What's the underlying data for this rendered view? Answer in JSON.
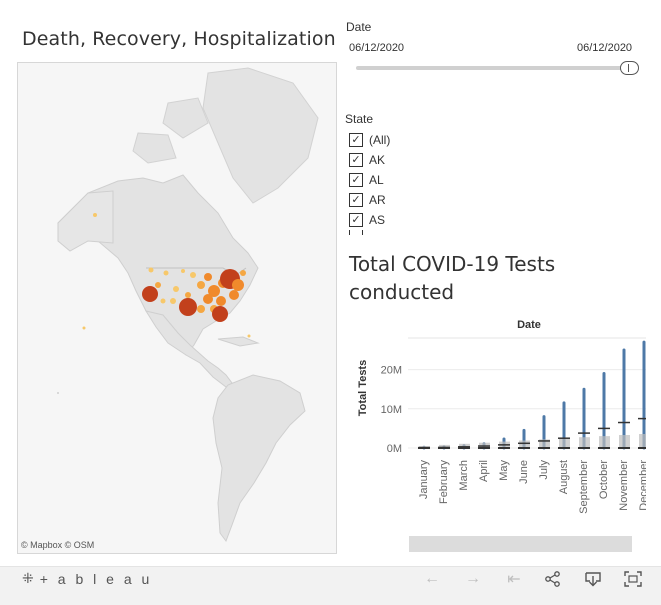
{
  "map": {
    "title": "Death, Recovery, Hospitalization",
    "attribution": "© Mapbox  © OSM",
    "colors": {
      "land": "#e3e3e3",
      "water": "#f6f6f6",
      "borders": "#c8c8c8",
      "dot_low": "#f7c86a",
      "dot_mid": "#f08a2c",
      "dot_high": "#c2401c"
    }
  },
  "filters": {
    "date_label": "Date",
    "date_start": "06/12/2020",
    "date_end": "06/12/2020",
    "state_label": "State",
    "states": [
      "(All)",
      "AK",
      "AL",
      "AR",
      "AS"
    ]
  },
  "tests_chart": {
    "title": "Total COVID-19 Tests conducted",
    "chart_data": {
      "type": "scatter",
      "title": "Total COVID-19 Tests conducted",
      "column_header": "Date",
      "ylabel": "Total Tests",
      "categories": [
        "January",
        "February",
        "March",
        "April",
        "May",
        "June",
        "July",
        "August",
        "September",
        "October",
        "November",
        "December"
      ],
      "y_ticks": [
        "0M",
        "10M",
        "20M"
      ],
      "ylim": [
        0,
        25000000
      ],
      "max_values": [
        200000,
        300000,
        600000,
        1100000,
        2300000,
        4500000,
        8000000,
        11500000,
        15000000,
        19000000,
        25000000,
        27000000
      ],
      "upper_marks": [
        100000,
        150000,
        300000,
        500000,
        800000,
        1200000,
        1800000,
        2500000,
        3800000,
        5000000,
        6500000,
        7500000
      ],
      "series_color": "#4e79a7",
      "mark_color": "#333333"
    }
  },
  "toolbar": {
    "logo_text": "+ a b l e a u",
    "undo_icon": "undo-arrow-icon",
    "redo_icon": "redo-arrow-icon",
    "revert_icon": "revert-icon",
    "share_icon": "share-icon",
    "download_icon": "download-icon",
    "fullscreen_icon": "fullscreen-icon"
  }
}
